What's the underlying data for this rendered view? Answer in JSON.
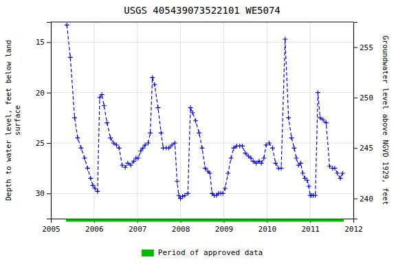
{
  "chart_data": {
    "type": "line",
    "title": "USGS 405439073522101 WE5074",
    "ylabel": "Depth to water level, feet below land\nsurface",
    "y2label": "Groundwater level above NGVD 1929, feet",
    "xlim": [
      2005.0,
      2012.0
    ],
    "xticks": [
      2005,
      2006,
      2007,
      2008,
      2009,
      2010,
      2011,
      2012
    ],
    "ylim": [
      32.5,
      13.0
    ],
    "yticks": [
      15,
      20,
      25,
      30
    ],
    "y2lim": [
      238.0,
      257.5
    ],
    "y2ticks": [
      240,
      245,
      250,
      255
    ],
    "grid": true,
    "legend": "bottom",
    "x": [
      2005.37,
      2005.45,
      2005.55,
      2005.62,
      2005.7,
      2005.78,
      2005.85,
      2005.92,
      2005.97,
      2006.02,
      2006.08,
      2006.13,
      2006.18,
      2006.23,
      2006.3,
      2006.38,
      2006.45,
      2006.52,
      2006.58,
      2006.65,
      2006.72,
      2006.78,
      2006.85,
      2006.92,
      2006.97,
      2007.02,
      2007.08,
      2007.13,
      2007.18,
      2007.25,
      2007.3,
      2007.35,
      2007.4,
      2007.48,
      2007.55,
      2007.6,
      2007.67,
      2007.73,
      2007.8,
      2007.87,
      2007.92,
      2007.96,
      2008.0,
      2008.05,
      2008.1,
      2008.17,
      2008.23,
      2008.28,
      2008.35,
      2008.43,
      2008.5,
      2008.57,
      2008.63,
      2008.68,
      2008.73,
      2008.78,
      2008.83,
      2008.88,
      2008.93,
      2008.98,
      2009.03,
      2009.1,
      2009.17,
      2009.23,
      2009.3,
      2009.37,
      2009.43,
      2009.5,
      2009.57,
      2009.63,
      2009.68,
      2009.75,
      2009.82,
      2009.87,
      2009.93,
      2009.98,
      2010.05,
      2010.13,
      2010.2,
      2010.27,
      2010.33,
      2010.42,
      2010.5,
      2010.57,
      2010.63,
      2010.68,
      2010.73,
      2010.78,
      2010.83,
      2010.88,
      2010.93,
      2010.97,
      2011.0,
      2011.03,
      2011.07,
      2011.12,
      2011.18,
      2011.23,
      2011.3,
      2011.37,
      2011.45,
      2011.52,
      2011.57,
      2011.63,
      2011.7,
      2011.75
    ],
    "series": [
      {
        "color": "#0000cc",
        "marker": "+",
        "line_style": "dashed",
        "values": [
          13.3,
          16.5,
          22.5,
          24.5,
          25.5,
          26.5,
          27.5,
          28.5,
          29.2,
          29.5,
          29.8,
          20.5,
          20.2,
          21.3,
          23.0,
          24.5,
          25.0,
          25.2,
          25.5,
          27.2,
          27.4,
          27.0,
          27.2,
          26.8,
          26.5,
          26.5,
          25.8,
          25.5,
          25.2,
          25.0,
          24.0,
          18.5,
          19.2,
          21.5,
          24.0,
          25.5,
          25.5,
          25.5,
          25.2,
          25.0,
          28.8,
          30.2,
          30.5,
          30.3,
          30.2,
          30.0,
          21.5,
          22.0,
          22.8,
          24.0,
          25.5,
          27.5,
          27.8,
          28.0,
          30.0,
          30.2,
          30.2,
          30.0,
          30.0,
          30.0,
          29.5,
          28.0,
          26.5,
          25.5,
          25.3,
          25.3,
          25.3,
          26.0,
          26.3,
          26.5,
          26.8,
          27.0,
          26.8,
          27.0,
          26.5,
          25.2,
          25.0,
          25.5,
          27.0,
          27.5,
          27.5,
          14.7,
          22.5,
          24.5,
          25.5,
          26.5,
          27.2,
          27.0,
          28.0,
          28.5,
          28.7,
          29.3,
          30.2,
          30.2,
          30.2,
          30.2,
          20.0,
          22.5,
          22.7,
          23.0,
          27.3,
          27.5,
          27.5,
          28.0,
          28.5,
          28.0
        ]
      }
    ],
    "approved_period": {
      "name": "Period of approved data",
      "color": "#00bb00",
      "x": [
        2005.35,
        2011.78
      ]
    }
  }
}
